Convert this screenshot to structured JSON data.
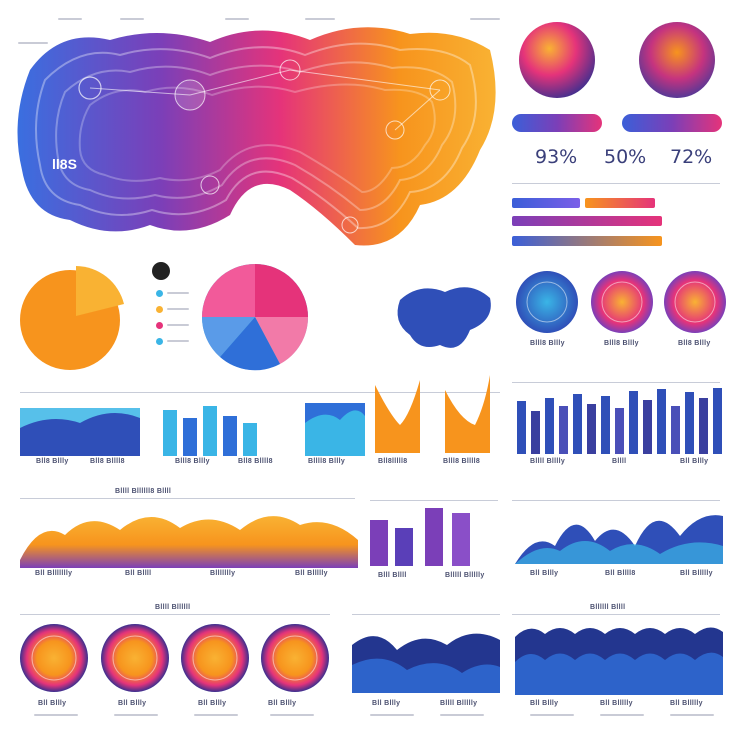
{
  "percentages": [
    "93%",
    "50%",
    "72%"
  ],
  "captions": {
    "map_left": "ll8S",
    "bar_row_1": [
      "Bll8 Bllly",
      "Bll8 Bllll8",
      "Blll8 Bllly",
      "Bll8 Bllll8",
      "Bllll8 Bllly",
      "Bll8lllll8",
      "Blll8 Bllll8"
    ],
    "ring_row_1": [
      "Blll8 Bllly",
      "Blll8 Bllly",
      "Bll8 Bllly"
    ],
    "bars_right_1": [
      "Bllll Blllly",
      "Bllll",
      "Bll Bllly"
    ],
    "wave_left": [
      "Bll Bllllllly",
      "Bll Bllll",
      "Bllllllly",
      "Bll Bllllly"
    ],
    "bars_mid_2": [
      "Blll Bllll",
      "Blllll Bllllly"
    ],
    "wave_right": [
      "Bll Bllly",
      "Bll Bllll8",
      "Bll Bllllly"
    ],
    "ring_row_2": [
      "Bll Bllly",
      "Bll Bllly",
      "Bll Bllly",
      "Bll Bllly"
    ],
    "wave_mid_3": [
      "Bll Bllly",
      "Bllll Bllllly"
    ],
    "wave_right_3": [
      "Bll Bllly",
      "Bll Bllllly",
      "Bll Bllllly"
    ],
    "section_heads": [
      "Bllll Bllllll8 Bllll",
      "Bllll Bllllll",
      "Bllllll Bllll"
    ]
  },
  "colors": {
    "orange": "#f7941d",
    "magenta": "#e5337a",
    "purple": "#7b3fb8",
    "blue": "#2f6fd8",
    "cyan": "#3ab5e6",
    "navy": "#23368f"
  }
}
